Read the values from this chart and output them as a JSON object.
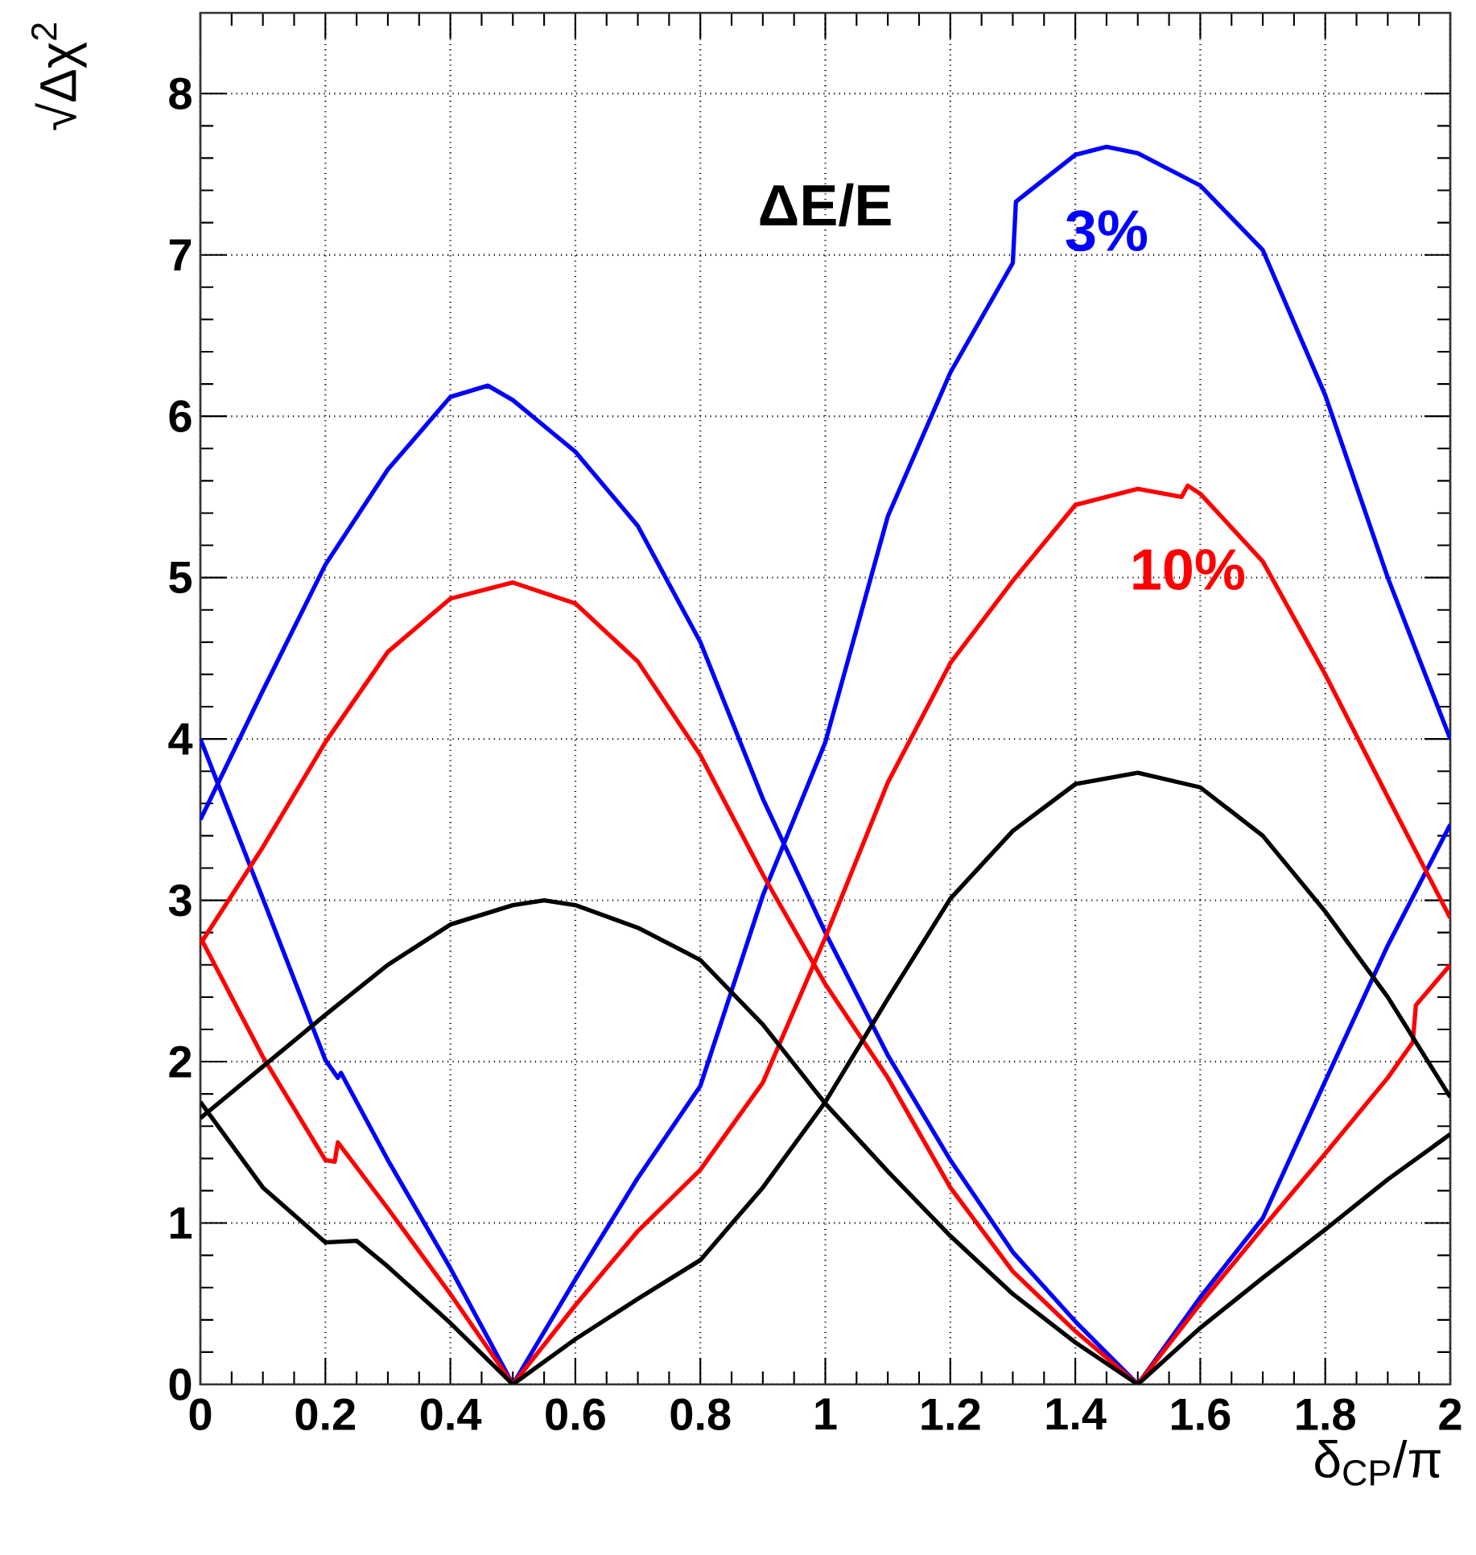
{
  "chart_data": {
    "type": "line",
    "xlabel": "δ$_{CP}$/π",
    "ylabel": "√Δχ$^{2}$",
    "annotations": [
      "ΔE/E"
    ],
    "xlim": [
      0,
      2
    ],
    "ylim": [
      0,
      8.5
    ],
    "xticks": [
      0,
      0.2,
      0.4,
      0.6,
      0.8,
      1,
      1.2,
      1.4,
      1.6,
      1.8,
      2
    ],
    "yticks": [
      0,
      1,
      2,
      3,
      4,
      5,
      6,
      7,
      8
    ],
    "grid": true,
    "series": [
      {
        "color": "#0000ff",
        "x": [
          0,
          0.1,
          0.2,
          0.3,
          0.4,
          0.46,
          0.5,
          0.6,
          0.7,
          0.8,
          0.9,
          1.0,
          1.1,
          1.2,
          1.3,
          1.4,
          1.5,
          1.6,
          1.7,
          1.8,
          1.9,
          2.0
        ],
        "values": [
          3.5,
          4.3,
          5.08,
          5.67,
          6.12,
          6.19,
          6.1,
          5.78,
          5.32,
          4.6,
          3.63,
          2.8,
          2.04,
          1.39,
          0.82,
          0.39,
          0,
          0.54,
          1.03,
          1.88,
          2.72,
          3.47
        ]
      },
      {
        "name": "3%",
        "color": "#0000ff",
        "x": [
          0,
          0.1,
          0.2,
          0.22,
          0.225,
          0.3,
          0.4,
          0.5,
          0.6,
          0.7,
          0.8,
          0.9,
          1.0,
          1.1,
          1.2,
          1.3,
          1.305,
          1.4,
          1.45,
          1.5,
          1.6,
          1.7,
          1.8,
          1.9,
          2.0
        ],
        "values": [
          4.0,
          3.01,
          2.01,
          1.9,
          1.93,
          1.39,
          0.72,
          0,
          0.65,
          1.28,
          1.85,
          3.03,
          3.98,
          5.38,
          6.27,
          6.95,
          7.33,
          7.62,
          7.67,
          7.63,
          7.43,
          7.03,
          6.13,
          5.0,
          4.0
        ]
      },
      {
        "color": "#ff0000",
        "x": [
          0,
          0.1,
          0.2,
          0.3,
          0.4,
          0.5,
          0.6,
          0.7,
          0.8,
          0.9,
          1.0,
          1.1,
          1.2,
          1.3,
          1.4,
          1.5,
          1.6,
          1.7,
          1.8,
          1.9,
          1.94,
          1.945,
          2.0
        ],
        "values": [
          2.73,
          3.33,
          3.98,
          4.54,
          4.87,
          4.97,
          4.84,
          4.48,
          3.9,
          3.16,
          2.48,
          1.9,
          1.22,
          0.7,
          0.33,
          0,
          0.5,
          0.97,
          1.43,
          1.9,
          2.12,
          2.35,
          2.6
        ]
      },
      {
        "name": "10%",
        "color": "#ff0000",
        "x": [
          0,
          0.1,
          0.2,
          0.215,
          0.22,
          0.3,
          0.4,
          0.5,
          0.6,
          0.7,
          0.8,
          0.9,
          1.0,
          1.1,
          1.2,
          1.3,
          1.4,
          1.5,
          1.57,
          1.58,
          1.6,
          1.7,
          1.8,
          1.9,
          2.0
        ],
        "values": [
          2.77,
          2.03,
          1.39,
          1.38,
          1.5,
          1.09,
          0.56,
          0,
          0.49,
          0.95,
          1.33,
          1.87,
          2.77,
          3.73,
          4.47,
          4.98,
          5.45,
          5.55,
          5.5,
          5.57,
          5.52,
          5.1,
          4.4,
          3.64,
          2.89
        ]
      },
      {
        "color": "#000000",
        "x": [
          0,
          0.1,
          0.2,
          0.3,
          0.4,
          0.5,
          0.55,
          0.6,
          0.7,
          0.78,
          0.8,
          0.9,
          1.0,
          1.1,
          1.2,
          1.3,
          1.4,
          1.5,
          1.6,
          1.7,
          1.8,
          1.9,
          2.0
        ],
        "values": [
          1.65,
          1.97,
          2.29,
          2.6,
          2.85,
          2.97,
          3.0,
          2.97,
          2.83,
          2.67,
          2.63,
          2.23,
          1.74,
          1.32,
          0.92,
          0.56,
          0.26,
          0,
          0.35,
          0.66,
          0.96,
          1.27,
          1.55
        ]
      },
      {
        "color": "#000000",
        "x": [
          0,
          0.1,
          0.2,
          0.25,
          0.3,
          0.4,
          0.5,
          0.6,
          0.7,
          0.8,
          0.9,
          1.0,
          1.1,
          1.2,
          1.3,
          1.4,
          1.5,
          1.6,
          1.7,
          1.8,
          1.9,
          2.0
        ],
        "values": [
          1.75,
          1.22,
          0.88,
          0.89,
          0.73,
          0.38,
          0,
          0.28,
          0.53,
          0.77,
          1.22,
          1.75,
          2.39,
          3.01,
          3.43,
          3.72,
          3.79,
          3.7,
          3.4,
          2.93,
          2.4,
          1.78
        ]
      }
    ]
  }
}
